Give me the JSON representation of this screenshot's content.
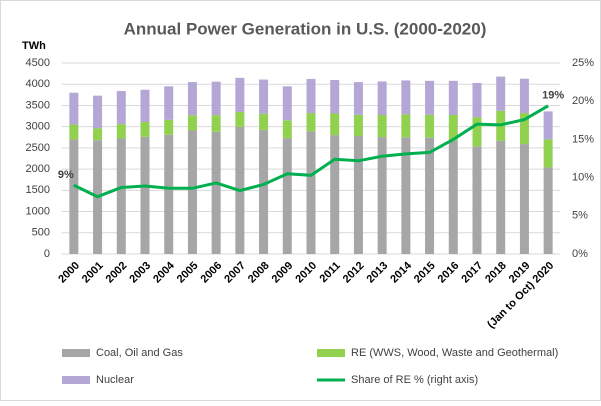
{
  "chart_data": {
    "type": "bar",
    "title": "Annual Power Generation in U.S. (2000-2020)",
    "y_axis_label": "TWh",
    "categories": [
      "2000",
      "2001",
      "2002",
      "2003",
      "2004",
      "2005",
      "2006",
      "2007",
      "2008",
      "2009",
      "2010",
      "2011",
      "2012",
      "2013",
      "2014",
      "2015",
      "2016",
      "2017",
      "2018",
      "2019",
      "(Jan to Oct) 2020"
    ],
    "series": [
      {
        "name": "Coal, Oil and Gas",
        "color": "#a6a6a6",
        "type": "bar",
        "values": [
          2700,
          2680,
          2720,
          2760,
          2810,
          2910,
          2880,
          2995,
          2925,
          2730,
          2890,
          2800,
          2780,
          2755,
          2750,
          2740,
          2665,
          2535,
          2665,
          2590,
          2040
        ]
      },
      {
        "name": "RE (WWS, Wood, Waste and Geothermal)",
        "color": "#92d050",
        "type": "bar",
        "values": [
          350,
          280,
          340,
          350,
          350,
          360,
          390,
          350,
          380,
          420,
          430,
          510,
          500,
          520,
          540,
          540,
          610,
          690,
          710,
          730,
          660
        ]
      },
      {
        "name": "Nuclear",
        "color": "#b4a7d6",
        "type": "bar",
        "values": [
          750,
          770,
          780,
          760,
          790,
          780,
          790,
          805,
          805,
          800,
          805,
          790,
          770,
          790,
          800,
          800,
          805,
          805,
          805,
          810,
          660
        ]
      },
      {
        "name": "Share of RE % (right axis)",
        "color": "#00b050",
        "type": "line",
        "axis": "y2",
        "values": [
          9,
          7.5,
          8.7,
          8.9,
          8.6,
          8.6,
          9.3,
          8.3,
          9.1,
          10.5,
          10.3,
          12.4,
          12.2,
          12.8,
          13.1,
          13.3,
          15,
          17,
          16.9,
          17.6,
          19.4
        ],
        "value_labels": [
          "9%",
          null,
          null,
          null,
          null,
          null,
          null,
          null,
          null,
          null,
          null,
          null,
          null,
          null,
          null,
          null,
          null,
          null,
          null,
          null,
          "19%"
        ]
      }
    ],
    "ylim": [
      0,
      4500
    ],
    "yticks": [
      0,
      500,
      1000,
      1500,
      2000,
      2500,
      3000,
      3500,
      4000,
      4500
    ],
    "y2lim": [
      0,
      25
    ],
    "y2ticks": [
      {
        "value": 0,
        "label": "0%"
      },
      {
        "value": 5,
        "label": "5%"
      },
      {
        "value": 10,
        "label": "10%"
      },
      {
        "value": 15,
        "label": "15%"
      },
      {
        "value": 20,
        "label": "20%"
      },
      {
        "value": 25,
        "label": "25%"
      }
    ],
    "grid": true,
    "legend": "bottom"
  }
}
